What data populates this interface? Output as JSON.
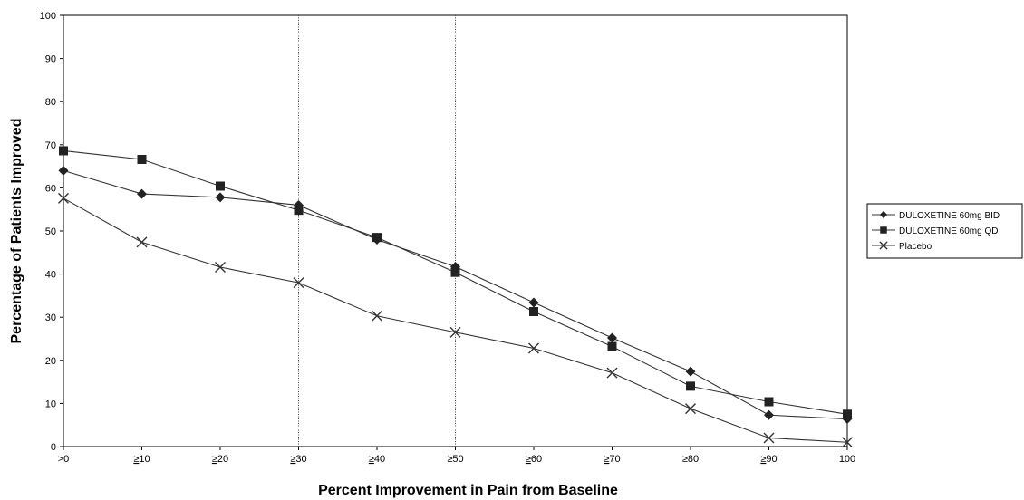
{
  "chart_data": {
    "type": "line",
    "title": "",
    "xlabel": "Percent Improvement in Pain from Baseline",
    "ylabel": "Percentage of Patients Improved",
    "ylim": [
      0,
      100
    ],
    "yticks": [
      0,
      10,
      20,
      30,
      40,
      50,
      60,
      70,
      80,
      90,
      100
    ],
    "categories": [
      {
        "prefix": ">",
        "num": "0",
        "under": false
      },
      {
        "prefix": "≥",
        "num": "10",
        "under": true
      },
      {
        "prefix": "≥",
        "num": "20",
        "under": true
      },
      {
        "prefix": "≥",
        "num": "30",
        "under": true
      },
      {
        "prefix": "≥",
        "num": "40",
        "under": true
      },
      {
        "prefix": "≥",
        "num": "50",
        "under": false
      },
      {
        "prefix": "≥",
        "num": "60",
        "under": true
      },
      {
        "prefix": "≥",
        "num": "70",
        "under": true
      },
      {
        "prefix": "≥",
        "num": "80",
        "under": false
      },
      {
        "prefix": "≥",
        "num": "90",
        "under": true
      },
      {
        "prefix": "",
        "num": "100",
        "under": false
      }
    ],
    "reference_lines_at_categories": [
      3,
      5
    ],
    "grid": false,
    "legend_position": "right",
    "series": [
      {
        "name": "DULOXETINE 60mg BID",
        "marker": "diamond",
        "values": [
          64,
          58.6,
          57.8,
          56,
          48,
          41.7,
          33.4,
          25.2,
          17.4,
          7.3,
          6.4
        ]
      },
      {
        "name": "DULOXETINE 60mg QD",
        "marker": "square",
        "values": [
          68.6,
          66.6,
          60.4,
          54.8,
          48.5,
          40.4,
          31.3,
          23.2,
          14,
          10.4,
          7.5
        ]
      },
      {
        "name": "Placebo",
        "marker": "x",
        "values": [
          57.6,
          47.4,
          41.6,
          38,
          30.3,
          26.5,
          22.8,
          17.1,
          8.8,
          2,
          1
        ]
      }
    ]
  }
}
